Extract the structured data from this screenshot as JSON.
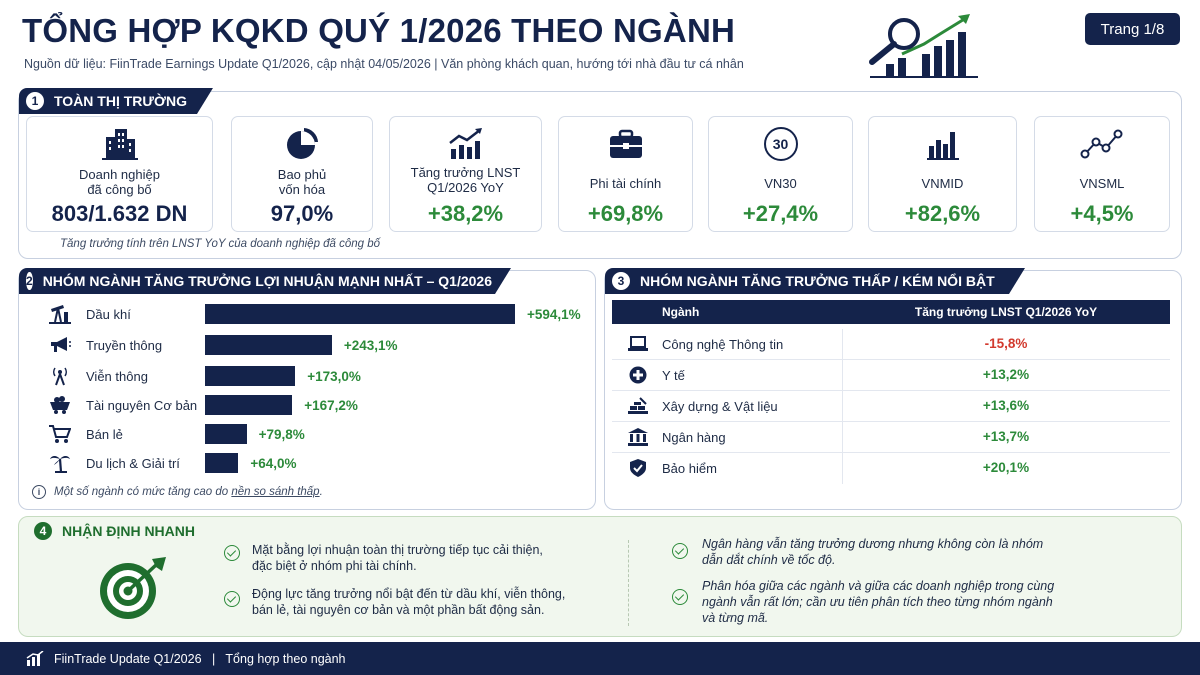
{
  "header": {
    "title": "TỔNG HỢP KQKD QUÝ 1/2026 THEO NGÀNH",
    "subtitle": "Nguồn dữ liệu: FiinTrade Earnings Update Q1/2026, cập nhật 04/05/2026 | Văn phòng khách quan, hướng tới nhà đầu tư cá nhân",
    "page": "Trang 1/8"
  },
  "section1": {
    "number": "1",
    "title": "TOÀN THỊ TRƯỜNG",
    "cards": [
      {
        "label": "Doanh nghiệp\nđã công bố",
        "value": "803/1.632 DN",
        "icon": "buildings-icon"
      },
      {
        "label": "Bao phủ\nvốn hóa",
        "value": "97,0%",
        "icon": "pie-chart-icon"
      },
      {
        "label": "Tăng trưởng LNST\nQ1/2026 YoY",
        "value": "+38,2%",
        "icon": "growth-chart-icon"
      },
      {
        "label": "Phi tài chính",
        "value": "+69,8%",
        "icon": "briefcase-icon"
      },
      {
        "label": "VN30",
        "value": "+27,4%",
        "icon": "vn30-badge-icon"
      },
      {
        "label": "VNMID",
        "value": "+82,6%",
        "icon": "bar-chart-icon"
      },
      {
        "label": "VNSML",
        "value": "+4,5%",
        "icon": "line-nodes-icon"
      }
    ],
    "note": "Tăng trưởng tính trên LNST YoY của doanh nghiệp đã công bố",
    "vn30_badge": "30"
  },
  "section2": {
    "number": "2",
    "title": "NHÓM NGÀNH TĂNG TRƯỞNG LỢI NHUẬN MẠNH NHẤT – Q1/2026",
    "note_prefix": "Một số ngành có mức tăng cao do ",
    "note_link": "nền so sánh thấp",
    "note_suffix": ".",
    "info_glyph": "i"
  },
  "chart_data": {
    "type": "bar",
    "categories": [
      "Dầu khí",
      "Truyền thông",
      "Viễn thông",
      "Tài nguyên Cơ bản",
      "Bán lẻ",
      "Du lịch & Giải trí"
    ],
    "values": [
      594.1,
      243.1,
      173.0,
      167.2,
      79.8,
      64.0
    ],
    "value_labels": [
      "+594,1%",
      "+243,1%",
      "+173,0%",
      "+167,2%",
      "+79,8%",
      "+64,0%"
    ],
    "icons": [
      "oil-pump-icon",
      "megaphone-icon",
      "antenna-icon",
      "mining-cart-icon",
      "shopping-cart-icon",
      "palm-tree-icon"
    ],
    "title": "",
    "xlabel": "",
    "ylabel": "",
    "bar_color": "#14234b",
    "label_color": "#2c8a3a"
  },
  "section3": {
    "number": "3",
    "title": "NHÓM NGÀNH TĂNG TRƯỞNG THẤP / KÉM NỔI BẬT",
    "col_sector": "Ngành",
    "col_growth": "Tăng trưởng LNST Q1/2026 YoY",
    "rows": [
      {
        "sector": "Công nghệ Thông tin",
        "growth": "-15,8%",
        "icon": "laptop-icon",
        "status": "negative"
      },
      {
        "sector": "Y tế",
        "growth": "+13,2%",
        "icon": "medical-cross-icon",
        "status": "positive"
      },
      {
        "sector": "Xây dựng & Vật liệu",
        "growth": "+13,6%",
        "icon": "construction-icon",
        "status": "positive"
      },
      {
        "sector": "Ngân hàng",
        "growth": "+13,7%",
        "icon": "bank-icon",
        "status": "positive"
      },
      {
        "sector": "Bảo hiểm",
        "growth": "+20,1%",
        "icon": "shield-check-icon",
        "status": "positive"
      }
    ]
  },
  "section4": {
    "number": "4",
    "title": "NHẬN ĐỊNH NHANH",
    "insights_left": [
      "Mặt bằng lợi nhuận toàn thị trường tiếp tục cải thiện,\nđặc biệt ở nhóm phi tài chính.",
      "Động lực tăng trưởng nổi bật đến từ dầu khí, viễn thông,\nbán lẻ, tài nguyên cơ bản và một phần bất động sản."
    ],
    "insights_right": [
      "Ngân hàng vẫn tăng trưởng dương nhưng không còn là nhóm\ndẫn dắt chính về tốc độ.",
      "Phân hóa giữa các ngành và giữa các doanh nghiệp trong cùng\nngành vẫn rất lớn; cần ưu tiên phân tích theo từng nhóm ngành\nvà từng mã."
    ]
  },
  "footer": {
    "text": "FiinTrade Update Q1/2026   |   Tổng hợp theo ngành"
  },
  "colors": {
    "navy": "#14234b",
    "green": "#2c8a3a",
    "red": "#d23a2e"
  }
}
